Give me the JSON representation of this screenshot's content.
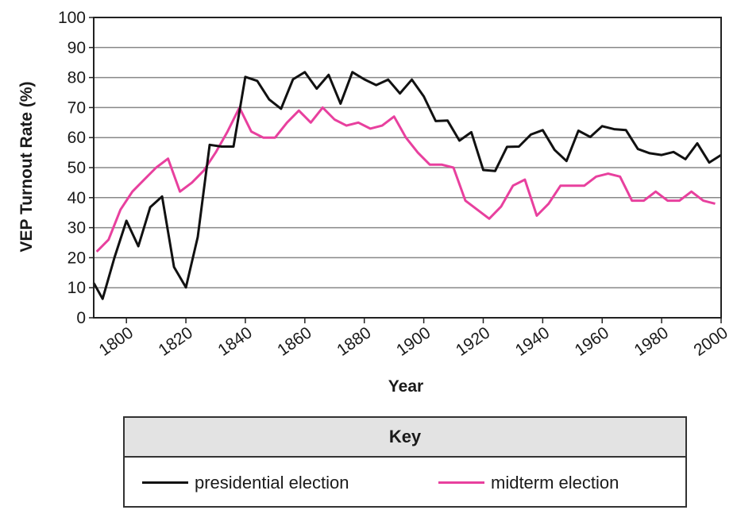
{
  "chart_data": {
    "type": "line",
    "xlabel": "Year",
    "ylabel": "VEP Turnout Rate (%)",
    "xlim": [
      1789,
      2000
    ],
    "ylim": [
      0,
      100
    ],
    "x_ticks": [
      "1800",
      "1820",
      "1840",
      "1860",
      "1880",
      "1900",
      "1920",
      "1940",
      "1960",
      "1980",
      "2000"
    ],
    "y_ticks": [
      "0",
      "10",
      "20",
      "30",
      "40",
      "50",
      "60",
      "70",
      "80",
      "90",
      "100"
    ],
    "grid": "horizontal",
    "series": [
      {
        "name": "presidential election",
        "color": "#111111",
        "points": [
          [
            1789,
            11.6
          ],
          [
            1792,
            6.3
          ],
          [
            1796,
            20.1
          ],
          [
            1800,
            32.3
          ],
          [
            1804,
            23.8
          ],
          [
            1808,
            36.8
          ],
          [
            1812,
            40.4
          ],
          [
            1816,
            16.9
          ],
          [
            1820,
            10.1
          ],
          [
            1824,
            26.9
          ],
          [
            1828,
            57.6
          ],
          [
            1832,
            57.0
          ],
          [
            1836,
            57.0
          ],
          [
            1840,
            80.2
          ],
          [
            1844,
            78.9
          ],
          [
            1848,
            72.7
          ],
          [
            1852,
            69.6
          ],
          [
            1856,
            79.4
          ],
          [
            1860,
            81.8
          ],
          [
            1864,
            76.3
          ],
          [
            1868,
            80.9
          ],
          [
            1872,
            71.3
          ],
          [
            1876,
            81.8
          ],
          [
            1880,
            79.4
          ],
          [
            1884,
            77.5
          ],
          [
            1888,
            79.3
          ],
          [
            1892,
            74.7
          ],
          [
            1896,
            79.3
          ],
          [
            1900,
            73.7
          ],
          [
            1904,
            65.5
          ],
          [
            1908,
            65.7
          ],
          [
            1912,
            59.0
          ],
          [
            1916,
            61.8
          ],
          [
            1920,
            49.2
          ],
          [
            1924,
            48.9
          ],
          [
            1928,
            56.9
          ],
          [
            1932,
            57.0
          ],
          [
            1936,
            61.0
          ],
          [
            1940,
            62.5
          ],
          [
            1944,
            55.9
          ],
          [
            1948,
            52.2
          ],
          [
            1952,
            62.3
          ],
          [
            1956,
            60.2
          ],
          [
            1960,
            63.8
          ],
          [
            1964,
            62.8
          ],
          [
            1968,
            62.5
          ],
          [
            1972,
            56.2
          ],
          [
            1976,
            54.8
          ],
          [
            1980,
            54.2
          ],
          [
            1984,
            55.2
          ],
          [
            1988,
            52.8
          ],
          [
            1992,
            58.1
          ],
          [
            1996,
            51.7
          ],
          [
            2000,
            54.2
          ]
        ]
      },
      {
        "name": "midterm election",
        "color": "#e8409e",
        "points": [
          [
            1790,
            22
          ],
          [
            1794,
            26
          ],
          [
            1798,
            36
          ],
          [
            1802,
            42
          ],
          [
            1806,
            46
          ],
          [
            1810,
            50
          ],
          [
            1814,
            53
          ],
          [
            1818,
            42
          ],
          [
            1822,
            45
          ],
          [
            1826,
            49
          ],
          [
            1830,
            55
          ],
          [
            1834,
            62
          ],
          [
            1838,
            70
          ],
          [
            1842,
            62
          ],
          [
            1846,
            60
          ],
          [
            1850,
            60
          ],
          [
            1854,
            65
          ],
          [
            1858,
            69
          ],
          [
            1862,
            65
          ],
          [
            1866,
            70
          ],
          [
            1870,
            66
          ],
          [
            1874,
            64
          ],
          [
            1878,
            65
          ],
          [
            1882,
            63
          ],
          [
            1886,
            64
          ],
          [
            1890,
            67
          ],
          [
            1894,
            60
          ],
          [
            1898,
            55
          ],
          [
            1902,
            51
          ],
          [
            1906,
            51
          ],
          [
            1910,
            50
          ],
          [
            1914,
            39
          ],
          [
            1918,
            36
          ],
          [
            1922,
            33
          ],
          [
            1926,
            37
          ],
          [
            1930,
            44
          ],
          [
            1934,
            46
          ],
          [
            1938,
            34
          ],
          [
            1942,
            38
          ],
          [
            1946,
            44
          ],
          [
            1950,
            44
          ],
          [
            1954,
            44
          ],
          [
            1958,
            47
          ],
          [
            1962,
            48
          ],
          [
            1966,
            47
          ],
          [
            1970,
            39
          ],
          [
            1974,
            39
          ],
          [
            1978,
            42
          ],
          [
            1982,
            39
          ],
          [
            1986,
            39
          ],
          [
            1990,
            42
          ],
          [
            1994,
            39
          ],
          [
            1998,
            38
          ]
        ]
      }
    ]
  },
  "key": {
    "title": "Key",
    "items": [
      {
        "label": "presidential election",
        "color": "#111111"
      },
      {
        "label": "midterm election",
        "color": "#e8409e"
      }
    ]
  }
}
